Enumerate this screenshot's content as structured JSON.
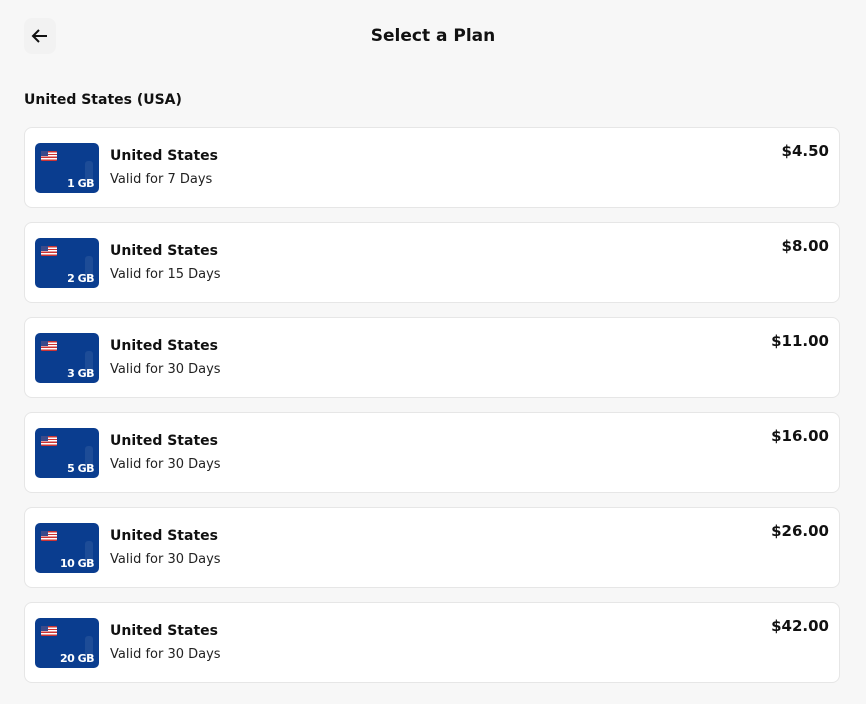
{
  "header": {
    "title": "Select a Plan",
    "back_icon": "arrow-left-icon"
  },
  "section": {
    "title": "United States (USA)"
  },
  "plans": [
    {
      "name": "United States",
      "data": "1 GB",
      "validity": "Valid for 7 Days",
      "price": "$4.50"
    },
    {
      "name": "United States",
      "data": "2 GB",
      "validity": "Valid for 15 Days",
      "price": "$8.00"
    },
    {
      "name": "United States",
      "data": "3 GB",
      "validity": "Valid for 30 Days",
      "price": "$11.00"
    },
    {
      "name": "United States",
      "data": "5 GB",
      "validity": "Valid for 30 Days",
      "price": "$16.00"
    },
    {
      "name": "United States",
      "data": "10 GB",
      "validity": "Valid for 30 Days",
      "price": "$26.00"
    },
    {
      "name": "United States",
      "data": "20 GB",
      "validity": "Valid for 30 Days",
      "price": "$42.00"
    }
  ],
  "colors": {
    "card_icon": "#0a3d8f",
    "background": "#f7f7f7"
  }
}
